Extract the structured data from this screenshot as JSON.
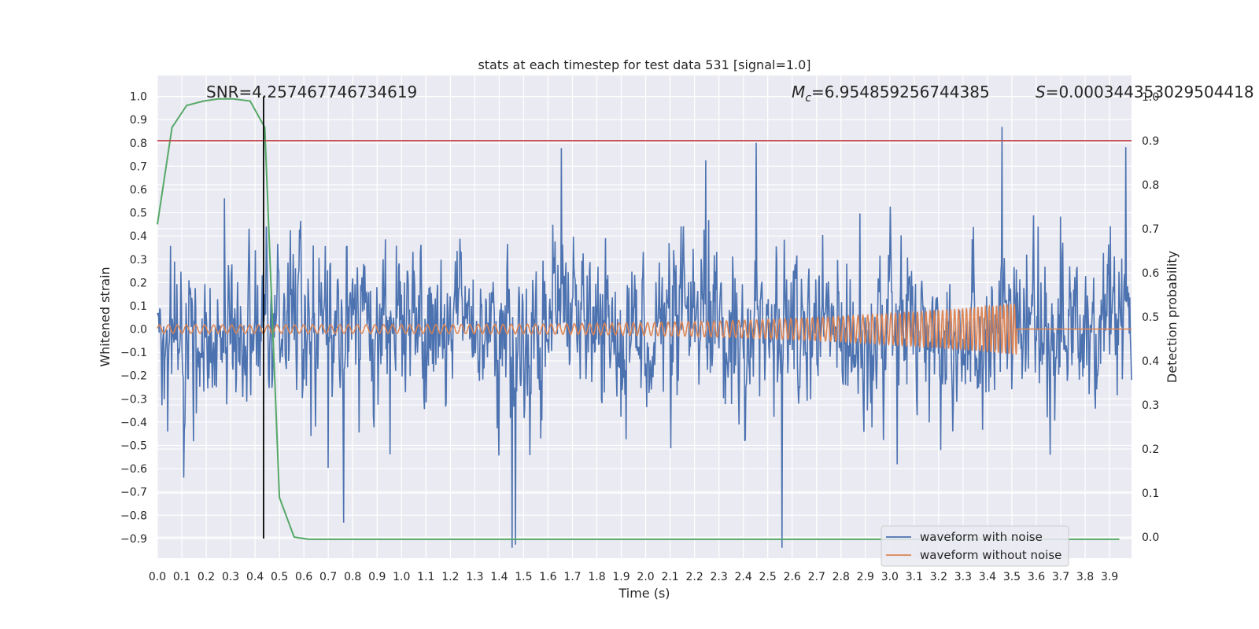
{
  "chart_data": {
    "type": "line",
    "title": "stats at each timestep for test data 531 [signal=1.0]",
    "xlabel": "Time (s)",
    "ylabel": "Whitened strain",
    "y2label": "Detection probability",
    "xlim": [
      0.0,
      3.99
    ],
    "ylim": [
      -0.985,
      1.09
    ],
    "y2lim": [
      -0.048,
      1.048
    ],
    "x_ticks": [
      0.0,
      0.1,
      0.2,
      0.3,
      0.4,
      0.5,
      0.6,
      0.7,
      0.8,
      0.9,
      1.0,
      1.1,
      1.2,
      1.3,
      1.4,
      1.5,
      1.6,
      1.7,
      1.8,
      1.9,
      2.0,
      2.1,
      2.2,
      2.3,
      2.4,
      2.5,
      2.6,
      2.7,
      2.8,
      2.9,
      3.0,
      3.1,
      3.2,
      3.3,
      3.4,
      3.5,
      3.6,
      3.7,
      3.8,
      3.9
    ],
    "x_tick_labels": [
      "0.0",
      "0.1",
      "0.2",
      "0.3",
      "0.4",
      "0.5",
      "0.6",
      "0.7",
      "0.8",
      "0.9",
      "1.0",
      "1.1",
      "1.2",
      "1.3",
      "1.4",
      "1.5",
      "1.6",
      "1.7",
      "1.8",
      "1.9",
      "2.0",
      "2.1",
      "2.2",
      "2.3",
      "2.4",
      "2.5",
      "2.6",
      "2.7",
      "2.8",
      "2.9",
      "3.0",
      "3.1",
      "3.2",
      "3.3",
      "3.4",
      "3.5",
      "3.6",
      "3.7",
      "3.8",
      "3.9"
    ],
    "y_ticks": [
      1.0,
      0.9,
      0.8,
      0.7,
      0.6,
      0.5,
      0.4,
      0.3,
      0.2,
      0.1,
      0.0,
      -0.1,
      -0.2,
      -0.3,
      -0.4,
      -0.5,
      -0.6,
      -0.7,
      -0.8,
      -0.9
    ],
    "y_tick_labels": [
      "1.0",
      "0.9",
      "0.8",
      "0.7",
      "0.6",
      "0.5",
      "0.4",
      "0.3",
      "0.2",
      "0.1",
      "0.0",
      "−0.1",
      "−0.2",
      "−0.3",
      "−0.4",
      "−0.5",
      "−0.6",
      "−0.7",
      "−0.8",
      "−0.9"
    ],
    "y2_ticks": [
      1.0,
      0.9,
      0.8,
      0.7,
      0.6,
      0.5,
      0.4,
      0.3,
      0.2,
      0.1,
      0.0
    ],
    "y2_tick_labels": [
      "1.0",
      "0.9",
      "0.8",
      "0.7",
      "0.6",
      "0.5",
      "0.4",
      "0.3",
      "0.2",
      "0.1",
      "0.0"
    ],
    "annotations": {
      "snr": "SNR=4.257467746734619",
      "mc_symbol": "M",
      "mc_sub": "c",
      "mc_value": "=6.954859256744385",
      "s_symbol": "S",
      "s_value": "=0.000344353029504418"
    },
    "threshold_y2": 0.9,
    "marker_x": 0.435,
    "legend_position": "lower-right",
    "grid": true,
    "series": [
      {
        "name": "waveform with noise",
        "color": "#4c72b0",
        "axis": "left",
        "generated_noise": {
          "duration": 3.99,
          "samples": 1700,
          "std": 0.27,
          "min": -0.94,
          "max": 1.0
        }
      },
      {
        "name": "waveform without noise",
        "color": "#dd8452",
        "axis": "left",
        "chirp": {
          "t_start": 0.0,
          "t_merger": 3.52,
          "f_start": 27,
          "f_end": 70,
          "amp_start": 0.018,
          "amp_end": 0.11
        }
      },
      {
        "color": "#55a868",
        "axis": "right",
        "x": [
          0.0,
          0.06,
          0.12,
          0.19,
          0.25,
          0.31,
          0.38,
          0.44,
          0.5,
          0.56,
          0.62,
          0.69,
          0.75,
          1.0,
          2.0,
          3.0,
          3.94
        ],
        "values": [
          0.71,
          0.93,
          0.98,
          0.99,
          0.995,
          0.995,
          0.99,
          0.93,
          0.09,
          0.0,
          -0.005,
          -0.005,
          -0.005,
          -0.005,
          -0.005,
          -0.005,
          -0.005
        ]
      },
      {
        "color": "#c44e52",
        "axis": "right",
        "type": "hline",
        "value": 0.9
      }
    ]
  }
}
